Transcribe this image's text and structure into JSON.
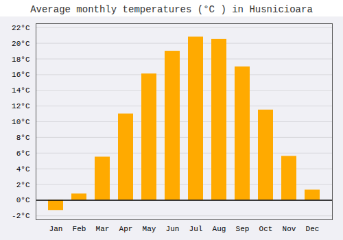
{
  "chart_data": {
    "type": "bar",
    "title": "Average monthly temperatures (°C ) in Husnicioara",
    "categories": [
      "Jan",
      "Feb",
      "Mar",
      "Apr",
      "May",
      "Jun",
      "Jul",
      "Aug",
      "Sep",
      "Oct",
      "Nov",
      "Dec"
    ],
    "values": [
      -1.3,
      0.8,
      5.5,
      11.0,
      16.1,
      19.0,
      20.8,
      20.5,
      17.0,
      11.5,
      5.6,
      1.3
    ],
    "color": "#FFAA00",
    "ylim": [
      -2.5,
      22.5
    ],
    "yticks": [
      {
        "value": -2,
        "label": "-2°C"
      },
      {
        "value": 0,
        "label": "0°C"
      },
      {
        "value": 2,
        "label": "2°C"
      },
      {
        "value": 4,
        "label": "4°C"
      },
      {
        "value": 6,
        "label": "6°C"
      },
      {
        "value": 8,
        "label": "8°C"
      },
      {
        "value": 10,
        "label": "10°C"
      },
      {
        "value": 12,
        "label": "12°C"
      },
      {
        "value": 14,
        "label": "14°C"
      },
      {
        "value": 16,
        "label": "16°C"
      },
      {
        "value": 18,
        "label": "18°C"
      },
      {
        "value": 20,
        "label": "20°C"
      },
      {
        "value": 22,
        "label": "22°C"
      }
    ],
    "grid": true
  }
}
